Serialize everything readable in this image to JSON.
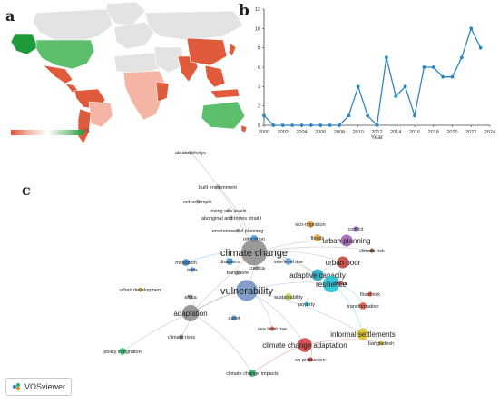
{
  "panels": {
    "a": "a",
    "b": "b",
    "c": "c"
  },
  "map": {
    "legend_suffix": "rs",
    "legend_colors": [
      "#e8523a",
      "#f2b9a8",
      "#ffffff",
      "#9ed4a4",
      "#1f9a3a"
    ],
    "colors": {
      "base": "#e3e3e3",
      "high": "#1f9a3a",
      "mid": "#5cbf6c",
      "low": "#e05a3c",
      "pale": "#f5b5a5",
      "ocean": "#ffffff"
    }
  },
  "chart_data": [
    {
      "type": "line",
      "title": "",
      "xlabel": "Year",
      "ylabel": "",
      "x": [
        2000,
        2001,
        2002,
        2003,
        2004,
        2005,
        2006,
        2007,
        2008,
        2009,
        2010,
        2011,
        2012,
        2013,
        2014,
        2015,
        2016,
        2017,
        2018,
        2019,
        2020,
        2021,
        2022,
        2023
      ],
      "values": [
        1,
        0,
        0,
        0,
        0,
        0,
        0,
        0,
        0,
        1,
        4,
        1,
        0,
        7,
        3,
        4,
        1,
        6,
        6,
        5,
        5,
        7,
        10,
        8
      ],
      "xlim": [
        2000,
        2024
      ],
      "ylim": [
        0,
        12
      ],
      "xticks": [
        2000,
        2002,
        2004,
        2006,
        2008,
        2010,
        2012,
        2014,
        2016,
        2018,
        2020,
        2022,
        2024
      ],
      "yticks": [
        0,
        2,
        4,
        6,
        8,
        10,
        12
      ],
      "color": "#2e86c1",
      "grid": false
    }
  ],
  "network": {
    "badge_label": "VOSviewer",
    "nodes": [
      {
        "label": "aldabrachelys",
        "size": 7,
        "color": "#bbbbbb"
      },
      {
        "label": "built environment",
        "size": 7,
        "color": "#bbbbbb"
      },
      {
        "label": "cetho temple",
        "size": 7,
        "color": "#bbbbbb"
      },
      {
        "label": "rising sea levels",
        "size": 7,
        "color": "#bbbbbb"
      },
      {
        "label": "aboriginal and torres strait i",
        "size": 7,
        "color": "#bbbbbb"
      },
      {
        "label": "environmental planning",
        "size": 7,
        "color": "#bbbbbb"
      },
      {
        "label": "relocation",
        "size": 8,
        "color": "#3a8fd9"
      },
      {
        "label": "eco-migration",
        "size": 8,
        "color": "#e8a23a"
      },
      {
        "label": "floods",
        "size": 8,
        "color": "#e0a030"
      },
      {
        "label": "urban planning",
        "size": 10,
        "color": "#9b59b6"
      },
      {
        "label": "conflict",
        "size": 7,
        "color": "#9b59b6"
      },
      {
        "label": "climate change",
        "size": 16,
        "color": "#888888"
      },
      {
        "label": "climate risk",
        "size": 7,
        "color": "#8a5a3a"
      },
      {
        "label": "mitigation",
        "size": 8,
        "color": "#3a8fd9"
      },
      {
        "label": "disasters",
        "size": 8,
        "color": "#3a8fd9"
      },
      {
        "label": "sea-level rise",
        "size": 8,
        "color": "#5dade2"
      },
      {
        "label": "urban poor",
        "size": 10,
        "color": "#c0392b"
      },
      {
        "label": "tools",
        "size": 7,
        "color": "#3a8fd9"
      },
      {
        "label": "adaptive capacity",
        "size": 10,
        "color": "#17a2b8"
      },
      {
        "label": "bangalore",
        "size": 7,
        "color": "#bbbbbb"
      },
      {
        "label": "cuenca",
        "size": 7,
        "color": "#bbbbbb"
      },
      {
        "label": "resilience",
        "size": 12,
        "color": "#17becf"
      },
      {
        "label": "urban development",
        "size": 7,
        "color": "#b8a030"
      },
      {
        "label": "dhaka",
        "size": 7,
        "color": "#e74c3c"
      },
      {
        "label": "vulnerability",
        "size": 14,
        "color": "#6c8ebf"
      },
      {
        "label": "sustainability",
        "size": 8,
        "color": "#c5d645"
      },
      {
        "label": "flood risk",
        "size": 7,
        "color": "#e74c3c"
      },
      {
        "label": "africa",
        "size": 7,
        "color": "#888888"
      },
      {
        "label": "poverty",
        "size": 7,
        "color": "#17becf"
      },
      {
        "label": "transformation",
        "size": 8,
        "color": "#e74c3c"
      },
      {
        "label": "adaptation",
        "size": 12,
        "color": "#888888"
      },
      {
        "label": "asset",
        "size": 7,
        "color": "#3a8fd9"
      },
      {
        "label": "climate risks",
        "size": 7,
        "color": "#888888"
      },
      {
        "label": "sea level rise",
        "size": 7,
        "color": "#e74c3c"
      },
      {
        "label": "informal settlements",
        "size": 10,
        "color": "#d4c020"
      },
      {
        "label": "climate change adaptation",
        "size": 11,
        "color": "#cc3333"
      },
      {
        "label": "bangladesh",
        "size": 7,
        "color": "#d4c020"
      },
      {
        "label": "policy integration",
        "size": 8,
        "color": "#2ecc71"
      },
      {
        "label": "co-production",
        "size": 7,
        "color": "#cc3333"
      },
      {
        "label": "climate change impacts",
        "size": 8,
        "color": "#27ae60"
      }
    ]
  }
}
